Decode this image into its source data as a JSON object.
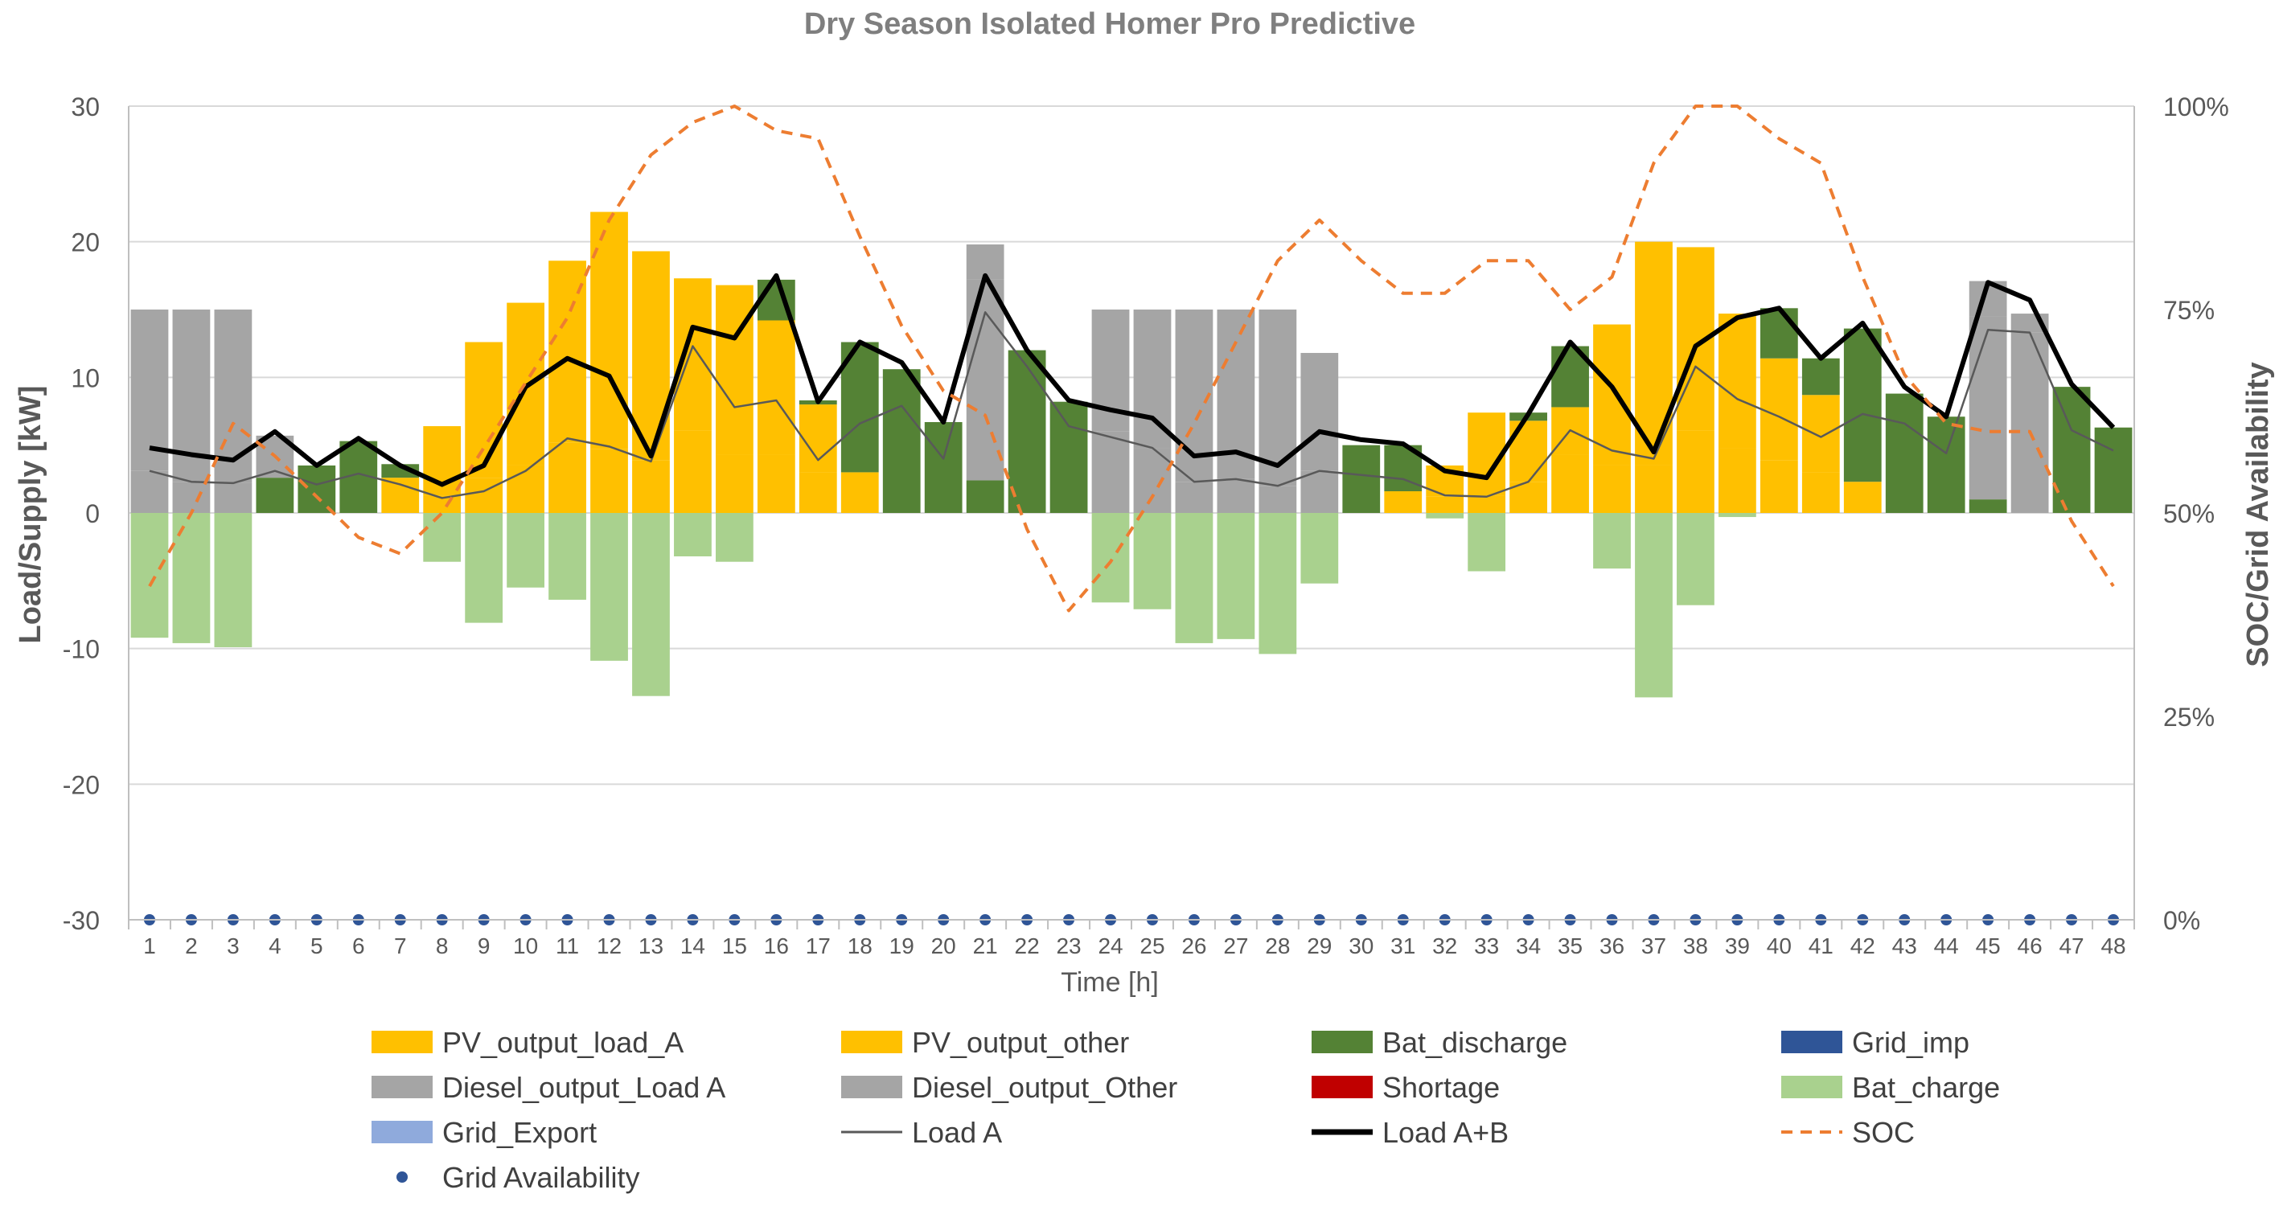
{
  "chart_data": {
    "type": "bar",
    "title": "Dry Season Isolated Homer Pro Predictive",
    "xlabel": "Time [h]",
    "ylabel": "Load/Supply [kW]",
    "y2label": "SOC/Grid Availability",
    "ylim": [
      -30,
      30
    ],
    "y2lim": [
      0,
      100
    ],
    "y_ticks": [
      "30",
      "20",
      "10",
      "0",
      "-10",
      "-20",
      "-30"
    ],
    "y2_ticks": [
      "100%",
      "75%",
      "50%",
      "25%",
      "0%"
    ],
    "categories": [
      "1",
      "2",
      "3",
      "4",
      "5",
      "6",
      "7",
      "8",
      "9",
      "10",
      "11",
      "12",
      "13",
      "14",
      "15",
      "16",
      "17",
      "18",
      "19",
      "20",
      "21",
      "22",
      "23",
      "24",
      "25",
      "26",
      "27",
      "28",
      "29",
      "30",
      "31",
      "32",
      "33",
      "34",
      "35",
      "36",
      "37",
      "38",
      "39",
      "40",
      "41",
      "42",
      "43",
      "44",
      "45",
      "46",
      "47",
      "48"
    ],
    "grid": "horizontal",
    "legend_position": "bottom",
    "series": [
      {
        "name": "PV_output_load_A",
        "kind": "stack",
        "color": "#FFC000",
        "values": [
          0,
          0,
          0,
          0,
          0,
          0,
          2.6,
          1.3,
          2.6,
          3.5,
          5.2,
          4.7,
          3.9,
          6.1,
          4.3,
          4.3,
          3.0,
          3.0,
          0,
          0,
          0,
          0,
          0,
          0,
          0,
          0,
          0,
          0,
          0,
          0,
          1.6,
          1.2,
          1.3,
          2.3,
          4.3,
          3.5,
          3.5,
          6.1,
          4.8,
          3.9,
          3.0,
          2.3,
          0,
          0,
          0,
          0,
          0,
          0
        ]
      },
      {
        "name": "PV_output_other",
        "kind": "stack",
        "color": "#FFC000",
        "values": [
          0,
          0,
          0,
          0,
          0,
          0,
          0,
          5.1,
          10.0,
          12.0,
          13.4,
          17.5,
          15.4,
          11.2,
          12.5,
          9.9,
          5.0,
          0,
          0,
          0,
          0,
          0,
          0,
          0,
          0,
          0,
          0,
          0,
          0,
          0,
          0,
          2.3,
          6.1,
          4.5,
          3.5,
          10.4,
          16.5,
          13.5,
          9.9,
          7.5,
          5.7,
          0,
          0,
          0,
          0,
          0,
          0,
          0
        ]
      },
      {
        "name": "Bat_discharge",
        "kind": "stack",
        "color": "#548235",
        "values": [
          0,
          0,
          0,
          2.6,
          3.5,
          5.3,
          1.0,
          0,
          0,
          0,
          0,
          0,
          0,
          0,
          0,
          3.0,
          0.3,
          9.6,
          10.6,
          6.7,
          2.4,
          12.0,
          8.2,
          0,
          0,
          0,
          0,
          0,
          0,
          5.0,
          3.4,
          0,
          0,
          0.6,
          4.5,
          0,
          0,
          0,
          0,
          3.7,
          2.7,
          11.3,
          8.8,
          7.1,
          1.0,
          0,
          9.3,
          6.3
        ]
      },
      {
        "name": "Grid_imp",
        "kind": "stack",
        "color": "#2F5597",
        "values": [
          0,
          0,
          0,
          0,
          0,
          0,
          0,
          0,
          0,
          0,
          0,
          0,
          0,
          0,
          0,
          0,
          0,
          0,
          0,
          0,
          0,
          0,
          0,
          0,
          0,
          0,
          0,
          0,
          0,
          0,
          0,
          0,
          0,
          0,
          0,
          0,
          0,
          0,
          0,
          0,
          0,
          0,
          0,
          0,
          0,
          0,
          0,
          0
        ]
      },
      {
        "name": "Diesel_output_Load A",
        "kind": "stack",
        "color": "#A5A5A5",
        "values": [
          3.1,
          2.3,
          2.2,
          0,
          0,
          0,
          0,
          0,
          0,
          0,
          0,
          0,
          0,
          0,
          0,
          0,
          0,
          0,
          0,
          0,
          14.8,
          0,
          0,
          6.0,
          4.8,
          2.3,
          2.5,
          2.0,
          3.1,
          0,
          0,
          0,
          0,
          0,
          0,
          0,
          0,
          0,
          0,
          0,
          0,
          0,
          0,
          0,
          13.5,
          13.3,
          0,
          0
        ]
      },
      {
        "name": "Diesel_output_Other",
        "kind": "stack",
        "color": "#A5A5A5",
        "values": [
          11.9,
          12.7,
          12.8,
          3.1,
          0,
          0,
          0,
          0,
          0,
          0,
          0,
          0,
          0,
          0,
          0,
          0,
          0,
          0,
          0,
          0,
          2.6,
          0,
          0,
          9.0,
          10.2,
          12.7,
          12.5,
          13.0,
          8.7,
          0,
          0,
          0,
          0,
          0,
          0,
          0,
          0,
          0,
          0,
          0,
          0,
          0,
          0,
          0,
          2.6,
          1.4,
          0,
          0
        ]
      },
      {
        "name": "Shortage",
        "kind": "stack",
        "color": "#C00000",
        "values": [
          0,
          0,
          0,
          0,
          0,
          0,
          0,
          0,
          0,
          0,
          0,
          0,
          0,
          0,
          0,
          0,
          0,
          0,
          0,
          0,
          0,
          0,
          0,
          0,
          0,
          0,
          0,
          0,
          0,
          0,
          0,
          0,
          0,
          0,
          0,
          0,
          0,
          0,
          0,
          0,
          0,
          0,
          0,
          0,
          0,
          0,
          0,
          0
        ]
      },
      {
        "name": "Bat_charge",
        "kind": "stack",
        "color": "#A9D18E",
        "values": [
          -9.2,
          -9.6,
          -9.9,
          0,
          0,
          0,
          0,
          -3.6,
          -8.1,
          -5.5,
          -6.4,
          -10.9,
          -13.5,
          -3.2,
          -3.6,
          0,
          0,
          0,
          0,
          0,
          0,
          0,
          0,
          -6.6,
          -7.1,
          -9.6,
          -9.3,
          -10.4,
          -5.2,
          0,
          0,
          -0.4,
          -4.3,
          0,
          0,
          -4.1,
          -13.6,
          -6.8,
          -0.3,
          0,
          0,
          0,
          0,
          0,
          0,
          0,
          0,
          0
        ]
      },
      {
        "name": "Grid_Export",
        "kind": "stack",
        "color": "#8FAADC",
        "values": [
          0,
          0,
          0,
          0,
          0,
          0,
          0,
          0,
          0,
          0,
          0,
          0,
          0,
          0,
          0,
          0,
          0,
          0,
          0,
          0,
          0,
          0,
          0,
          0,
          0,
          0,
          0,
          0,
          0,
          0,
          0,
          0,
          0,
          0,
          0,
          0,
          0,
          0,
          0,
          0,
          0,
          0,
          0,
          0,
          0,
          0,
          0,
          0
        ]
      },
      {
        "name": "Load A",
        "kind": "line",
        "axis": "primary",
        "color": "#595959",
        "values": [
          3.1,
          2.3,
          2.2,
          3.1,
          2.1,
          2.9,
          2.1,
          1.1,
          1.6,
          3.1,
          5.5,
          4.9,
          3.8,
          12.3,
          7.8,
          8.3,
          3.9,
          6.6,
          7.9,
          4.0,
          14.8,
          10.8,
          6.4,
          5.6,
          4.8,
          2.3,
          2.5,
          2.0,
          3.1,
          2.8,
          2.5,
          1.3,
          1.2,
          2.3,
          6.1,
          4.6,
          4.0,
          10.8,
          8.4,
          7.1,
          5.6,
          7.3,
          6.6,
          4.4,
          13.5,
          13.3,
          6.1,
          4.6
        ]
      },
      {
        "name": "Load A+B",
        "kind": "line",
        "axis": "primary",
        "color": "#000000",
        "values": [
          4.8,
          4.3,
          3.9,
          6.0,
          3.5,
          5.5,
          3.5,
          2.1,
          3.5,
          9.3,
          11.4,
          10.1,
          4.2,
          13.7,
          12.9,
          17.5,
          8.2,
          12.6,
          11.1,
          6.7,
          17.5,
          12.0,
          8.3,
          7.6,
          7.0,
          4.2,
          4.5,
          3.5,
          6.0,
          5.4,
          5.1,
          3.1,
          2.6,
          7.3,
          12.6,
          9.3,
          4.5,
          12.3,
          14.4,
          15.1,
          11.4,
          14.0,
          9.3,
          7.1,
          17.0,
          15.7,
          9.5,
          6.3
        ]
      },
      {
        "name": "SOC",
        "kind": "line",
        "axis": "secondary",
        "color": "#ED7D31",
        "dashed": true,
        "values": [
          41,
          50,
          61,
          57,
          52,
          47,
          45,
          50,
          58,
          66,
          74,
          86,
          94,
          98,
          100,
          97,
          96,
          84,
          73,
          65,
          62,
          48,
          38,
          44,
          52,
          61,
          71,
          81,
          86,
          81,
          77,
          77,
          81,
          81,
          75,
          79,
          93,
          100,
          100,
          96,
          93,
          79,
          67,
          61,
          60,
          60,
          49,
          41
        ]
      },
      {
        "name": "Grid Availability",
        "kind": "points",
        "axis": "secondary",
        "color": "#2F5597",
        "values": [
          0,
          0,
          0,
          0,
          0,
          0,
          0,
          0,
          0,
          0,
          0,
          0,
          0,
          0,
          0,
          0,
          0,
          0,
          0,
          0,
          0,
          0,
          0,
          0,
          0,
          0,
          0,
          0,
          0,
          0,
          0,
          0,
          0,
          0,
          0,
          0,
          0,
          0,
          0,
          0,
          0,
          0,
          0,
          0,
          0,
          0,
          0,
          0
        ]
      }
    ],
    "legend": [
      {
        "label": "PV_output_load_A",
        "swatch": "rect",
        "color": "#FFC000"
      },
      {
        "label": "PV_output_other",
        "swatch": "rect",
        "color": "#FFC000"
      },
      {
        "label": "Bat_discharge",
        "swatch": "rect",
        "color": "#548235"
      },
      {
        "label": "Grid_imp",
        "swatch": "rect",
        "color": "#2F5597"
      },
      {
        "label": "Diesel_output_Load A",
        "swatch": "rect",
        "color": "#A5A5A5"
      },
      {
        "label": "Diesel_output_Other",
        "swatch": "rect",
        "color": "#A5A5A5"
      },
      {
        "label": "Shortage",
        "swatch": "rect",
        "color": "#C00000"
      },
      {
        "label": "Bat_charge",
        "swatch": "rect",
        "color": "#A9D18E"
      },
      {
        "label": "Grid_Export",
        "swatch": "rect",
        "color": "#8FAADC"
      },
      {
        "label": "Load A",
        "swatch": "thin-line",
        "color": "#595959"
      },
      {
        "label": "Load A+B",
        "swatch": "thick-line",
        "color": "#000000"
      },
      {
        "label": "SOC",
        "swatch": "dashed-line",
        "color": "#ED7D31"
      },
      {
        "label": "Grid Availability",
        "swatch": "dot",
        "color": "#2F5597"
      }
    ]
  }
}
